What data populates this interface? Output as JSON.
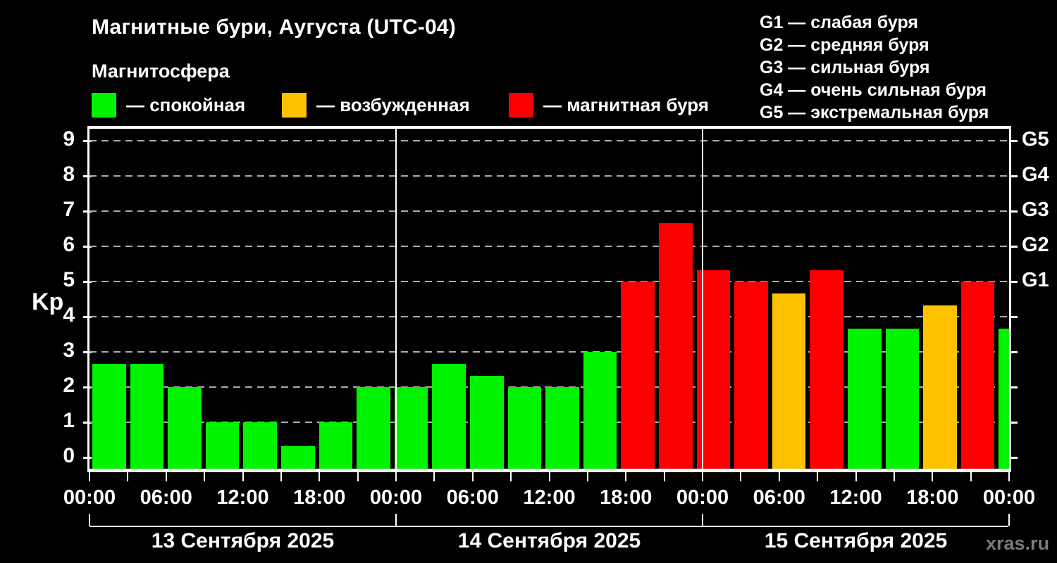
{
  "title": "Магнитные бури, Аугуста (UTC-04)",
  "subtitle": "Магнитосфера",
  "legend": [
    {
      "id": "calm",
      "label": "— спокойная",
      "color": "#00f400"
    },
    {
      "id": "excited",
      "label": "— возбужденная",
      "color": "#ffc100"
    },
    {
      "id": "storm",
      "label": "— магнитная буря",
      "color": "#fb0000"
    }
  ],
  "g_legend": [
    "G1 — слабая буря",
    "G2 — средняя буря",
    "G3 — сильная буря",
    "G4 — очень сильная буря",
    "G5 — экстремальная буря"
  ],
  "watermark": "xras.ru",
  "chart_data": {
    "type": "bar",
    "ylabel": "Kp",
    "yticks": [
      0,
      1,
      2,
      3,
      4,
      5,
      6,
      7,
      8,
      9
    ],
    "ylim": [
      0,
      9.4
    ],
    "grid": "horizontal-dashed",
    "legend_position": "top-left",
    "bar_interval_hours": 3,
    "x_tick_labels": [
      "00:00",
      "06:00",
      "12:00",
      "18:00",
      "00:00",
      "06:00",
      "12:00",
      "18:00",
      "00:00",
      "06:00",
      "12:00",
      "18:00",
      "00:00"
    ],
    "right_axis_labels": [
      {
        "label": "G1",
        "kp": 5
      },
      {
        "label": "G2",
        "kp": 6
      },
      {
        "label": "G3",
        "kp": 7
      },
      {
        "label": "G4",
        "kp": 8
      },
      {
        "label": "G5",
        "kp": 9
      }
    ],
    "colors": {
      "calm": "#00f400",
      "excited": "#ffc100",
      "storm": "#fb0000"
    },
    "color_rule": {
      "calm_below_kp": 4,
      "excited_below_kp": 5,
      "storm_from_kp": 5
    },
    "days": [
      {
        "date": "13 Сентября 2025",
        "kp_values": [
          2.67,
          2.67,
          2.0,
          1.0,
          1.0,
          0.33,
          1.0,
          2.0
        ]
      },
      {
        "date": "14 Сентября 2025",
        "kp_values": [
          2.0,
          2.67,
          2.33,
          2.0,
          2.0,
          3.0,
          5.0,
          6.67
        ]
      },
      {
        "date": "15 Сентября 2025",
        "kp_values": [
          5.33,
          5.0,
          4.67,
          5.33,
          3.67,
          3.67,
          4.33,
          5.0
        ]
      }
    ],
    "next_period_partial_kp": 3.67
  }
}
